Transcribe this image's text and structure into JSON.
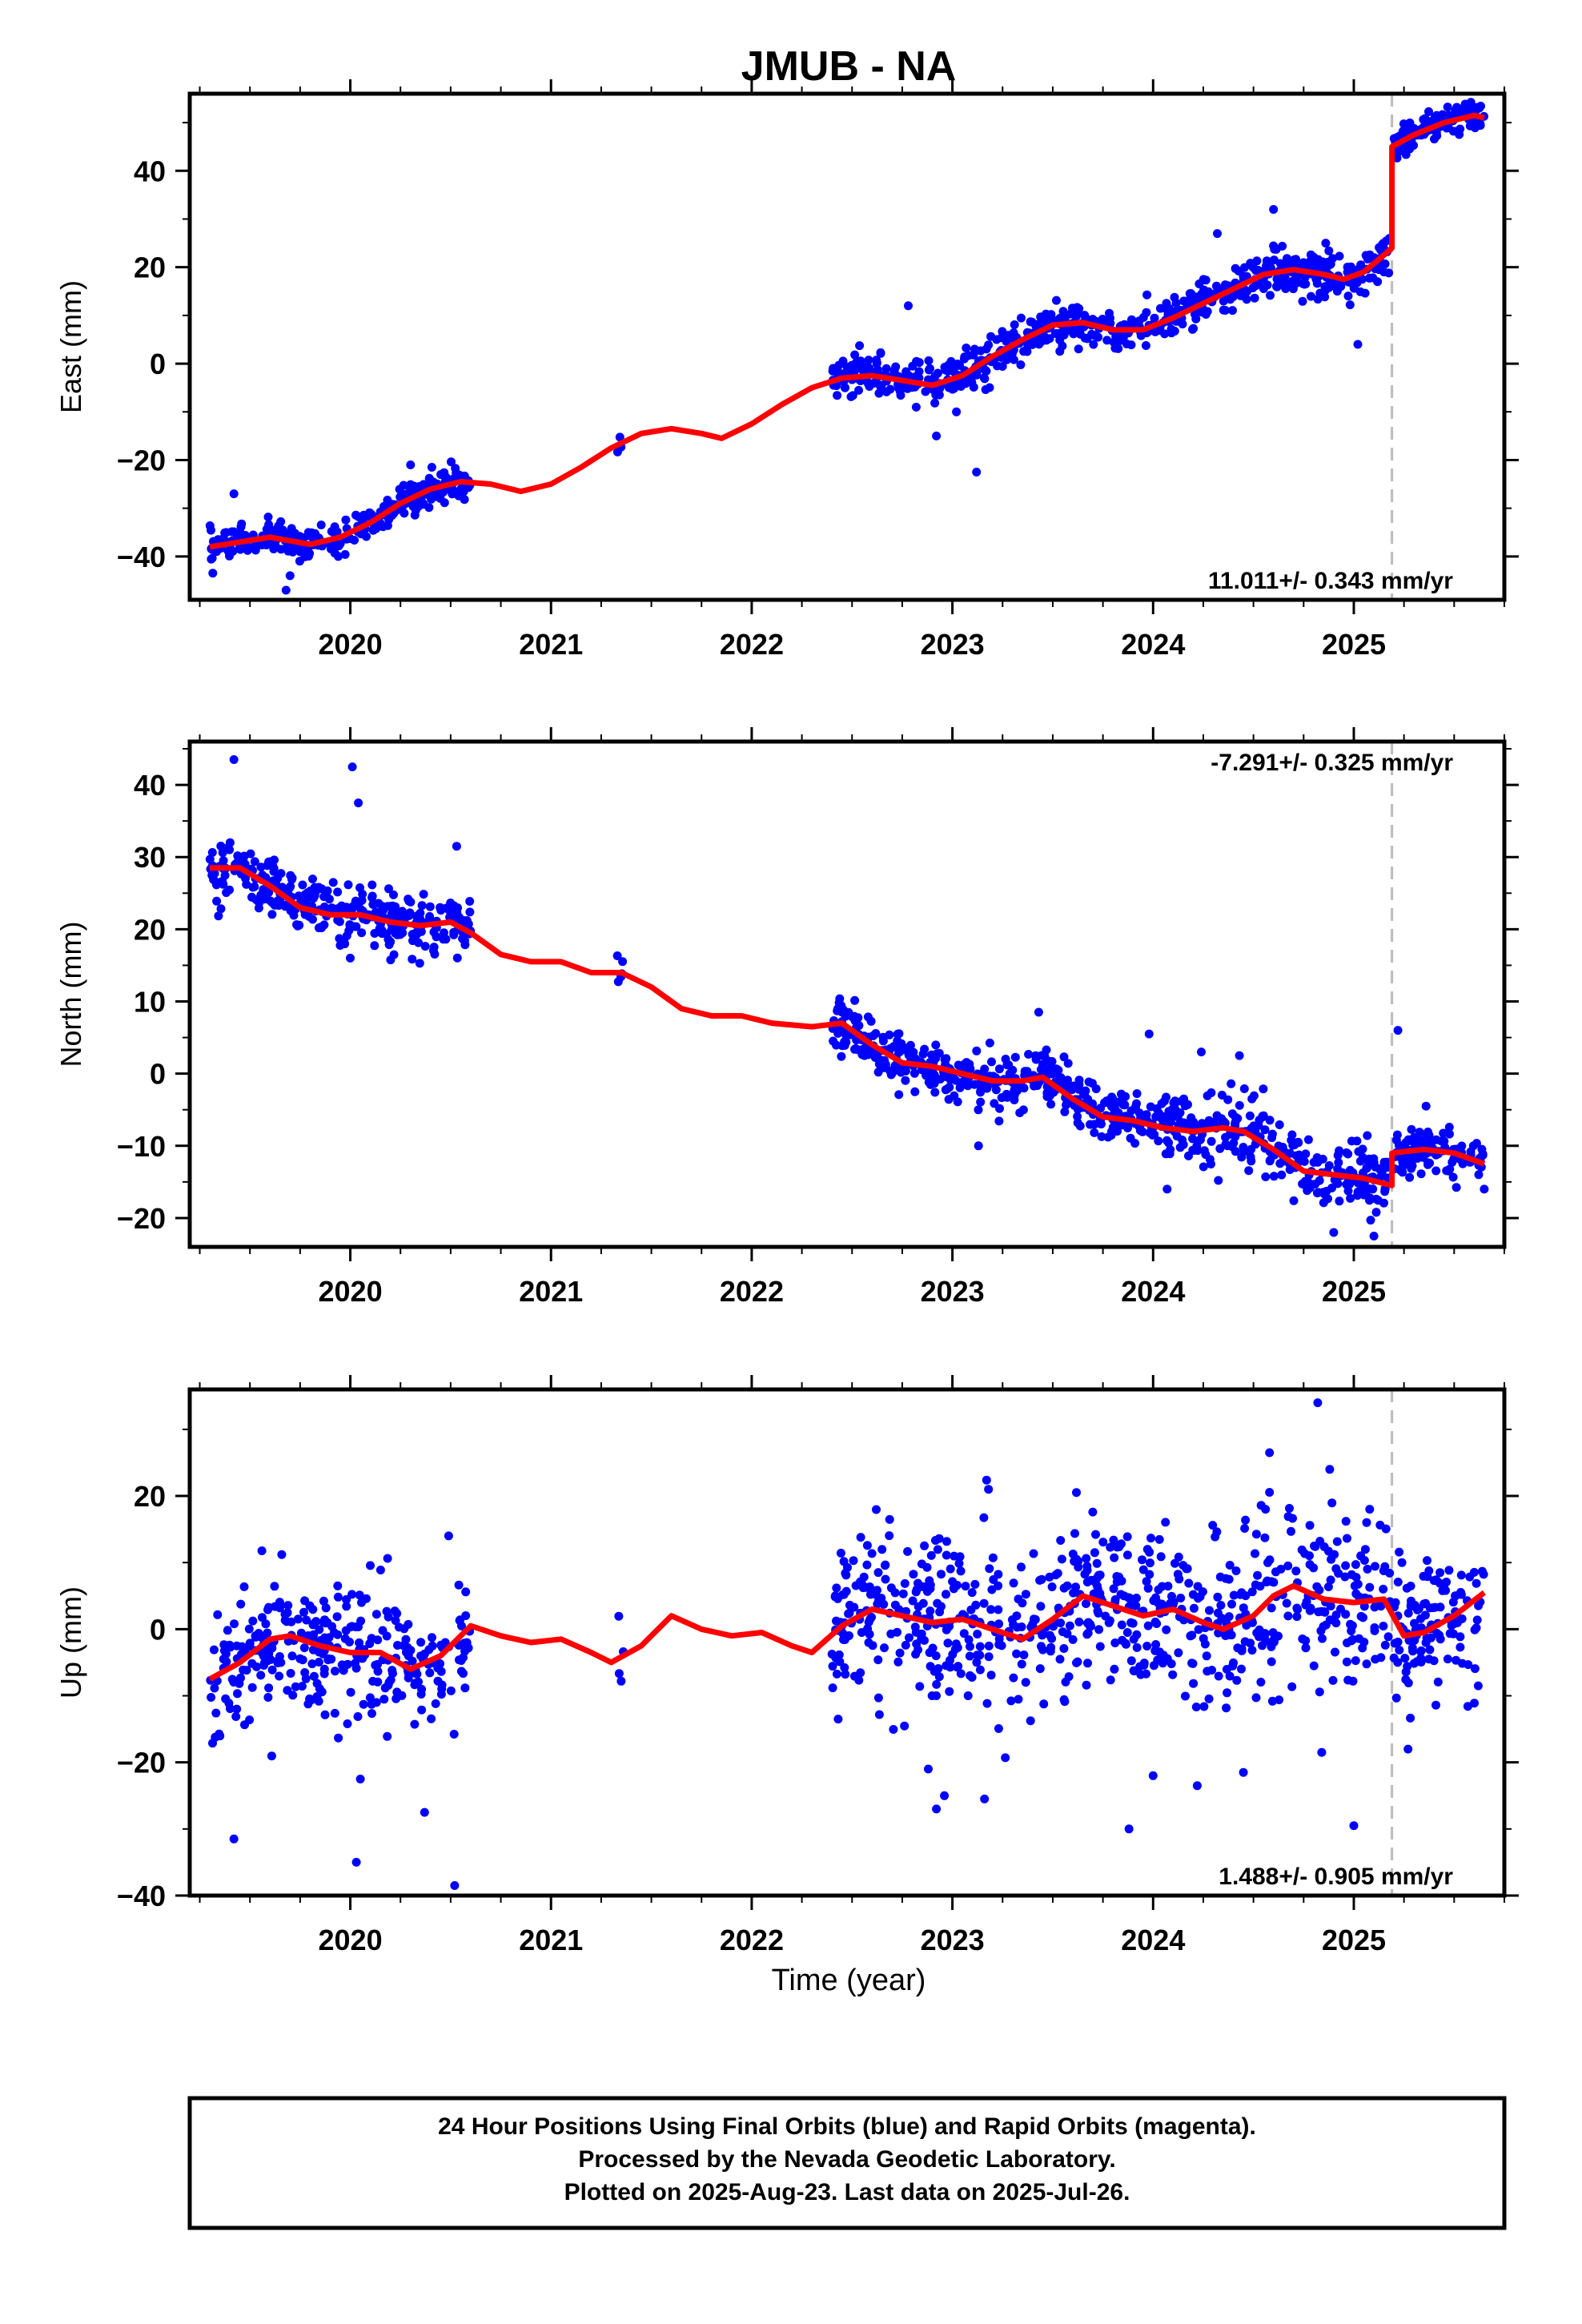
{
  "title": "JMUB - NA",
  "xlabel": "Time (year)",
  "footer": {
    "line1": "24 Hour Positions Using Final Orbits (blue) and Rapid Orbits (magenta).",
    "line2": "Processed by the Nevada Geodetic Laboratory.",
    "line3": "Plotted on 2025-Aug-23. Last data on 2025-Jul-26."
  },
  "colors": {
    "points": "#0000ff",
    "model": "#ff0000",
    "step_line": "#bbbbbb",
    "frame": "#000000"
  },
  "chart_data": [
    {
      "type": "scatter",
      "name": "east",
      "ylabel": "East (mm)",
      "rate_label": "11.011+/- 0.343 mm/yr",
      "xlim": [
        2019.2,
        2025.75
      ],
      "ylim": [
        -49,
        56
      ],
      "xticks": [
        2020,
        2021,
        2022,
        2023,
        2024,
        2025
      ],
      "yticks": [
        -40,
        -20,
        0,
        20,
        40
      ],
      "step_epoch": 2025.19,
      "model": [
        [
          2019.3,
          -38
        ],
        [
          2019.45,
          -37
        ],
        [
          2019.6,
          -36
        ],
        [
          2019.8,
          -37.5
        ],
        [
          2019.95,
          -36
        ],
        [
          2020.1,
          -33
        ],
        [
          2020.25,
          -29
        ],
        [
          2020.4,
          -26
        ],
        [
          2020.55,
          -24.5
        ],
        [
          2020.7,
          -25
        ],
        [
          2020.85,
          -26.5
        ],
        [
          2021.0,
          -25
        ],
        [
          2021.15,
          -21.5
        ],
        [
          2021.3,
          -17.5
        ],
        [
          2021.45,
          -14.5
        ],
        [
          2021.6,
          -13.5
        ],
        [
          2021.75,
          -14.5
        ],
        [
          2021.85,
          -15.5
        ],
        [
          2022.0,
          -12.5
        ],
        [
          2022.15,
          -8.5
        ],
        [
          2022.3,
          -5
        ],
        [
          2022.45,
          -3
        ],
        [
          2022.6,
          -2.5
        ],
        [
          2022.75,
          -3.5
        ],
        [
          2022.9,
          -4.5
        ],
        [
          2023.05,
          -2.5
        ],
        [
          2023.2,
          1.5
        ],
        [
          2023.35,
          5
        ],
        [
          2023.5,
          8
        ],
        [
          2023.65,
          8.5
        ],
        [
          2023.8,
          7
        ],
        [
          2023.95,
          7
        ],
        [
          2024.1,
          9.5
        ],
        [
          2024.25,
          12.5
        ],
        [
          2024.4,
          15.5
        ],
        [
          2024.55,
          18.5
        ],
        [
          2024.7,
          19.5
        ],
        [
          2024.85,
          18.5
        ],
        [
          2024.95,
          17.5
        ],
        [
          2025.05,
          19
        ],
        [
          2025.15,
          22.5
        ],
        [
          2025.19,
          24
        ],
        [
          2025.19,
          45
        ],
        [
          2025.3,
          47.5
        ],
        [
          2025.45,
          50
        ],
        [
          2025.6,
          51.5
        ],
        [
          2025.65,
          51
        ]
      ],
      "segments": [
        {
          "x0": 2019.3,
          "x1": 2020.6,
          "n": 320,
          "sd": 1.6,
          "out": [
            [
              2019.42,
              -27
            ],
            [
              2019.68,
              -47
            ],
            [
              2019.7,
              -44
            ],
            [
              2020.3,
              -21
            ]
          ]
        },
        {
          "x0": 2021.33,
          "x1": 2021.36,
          "n": 4,
          "sd": 1.2,
          "out": []
        },
        {
          "x0": 2022.4,
          "x1": 2023.7,
          "n": 330,
          "sd": 2.1,
          "out": [
            [
              2022.78,
              12
            ],
            [
              2022.92,
              -15
            ],
            [
              2023.12,
              -22.5
            ],
            [
              2023.02,
              -10
            ]
          ]
        },
        {
          "x0": 2023.7,
          "x1": 2025.18,
          "n": 360,
          "sd": 2.2,
          "out": [
            [
              2024.6,
              32
            ],
            [
              2024.32,
              27
            ],
            [
              2025.02,
              4
            ],
            [
              2024.86,
              25
            ]
          ]
        },
        {
          "x0": 2025.2,
          "x1": 2025.65,
          "n": 120,
          "sd": 1.6,
          "out": []
        }
      ]
    },
    {
      "type": "scatter",
      "name": "north",
      "ylabel": "North (mm)",
      "rate_label": "-7.291+/- 0.325 mm/yr",
      "xlim": [
        2019.2,
        2025.75
      ],
      "ylim": [
        -24,
        46
      ],
      "xticks": [
        2020,
        2021,
        2022,
        2023,
        2024,
        2025
      ],
      "yticks": [
        -20,
        -10,
        0,
        10,
        20,
        30,
        40
      ],
      "step_epoch": 2025.19,
      "model": [
        [
          2019.3,
          28.5
        ],
        [
          2019.45,
          28.5
        ],
        [
          2019.6,
          26
        ],
        [
          2019.75,
          23
        ],
        [
          2019.9,
          22
        ],
        [
          2020.05,
          22
        ],
        [
          2020.2,
          21
        ],
        [
          2020.35,
          20.5
        ],
        [
          2020.5,
          21
        ],
        [
          2020.6,
          19.5
        ],
        [
          2020.75,
          16.5
        ],
        [
          2020.9,
          15.5
        ],
        [
          2021.05,
          15.5
        ],
        [
          2021.2,
          14
        ],
        [
          2021.35,
          14
        ],
        [
          2021.5,
          12
        ],
        [
          2021.65,
          9
        ],
        [
          2021.8,
          8
        ],
        [
          2021.95,
          8
        ],
        [
          2022.1,
          7
        ],
        [
          2022.3,
          6.5
        ],
        [
          2022.45,
          7
        ],
        [
          2022.6,
          4
        ],
        [
          2022.75,
          1.5
        ],
        [
          2022.9,
          1
        ],
        [
          2023.05,
          0
        ],
        [
          2023.2,
          -1
        ],
        [
          2023.35,
          -1
        ],
        [
          2023.45,
          -0.5
        ],
        [
          2023.6,
          -3.5
        ],
        [
          2023.75,
          -6
        ],
        [
          2023.9,
          -6.5
        ],
        [
          2024.05,
          -7.5
        ],
        [
          2024.2,
          -8
        ],
        [
          2024.35,
          -7.5
        ],
        [
          2024.45,
          -8
        ],
        [
          2024.6,
          -10.5
        ],
        [
          2024.75,
          -13.5
        ],
        [
          2024.9,
          -14
        ],
        [
          2025.05,
          -14.5
        ],
        [
          2025.19,
          -15.5
        ],
        [
          2025.19,
          -11
        ],
        [
          2025.35,
          -10.5
        ],
        [
          2025.5,
          -11
        ],
        [
          2025.65,
          -12.5
        ]
      ],
      "segments": [
        {
          "x0": 2019.3,
          "x1": 2020.6,
          "n": 320,
          "sd": 2.0,
          "out": [
            [
              2019.42,
              43.5
            ],
            [
              2020.01,
              42.5
            ],
            [
              2020.04,
              37.5
            ],
            [
              2020.53,
              31.5
            ],
            [
              2020.0,
              16
            ]
          ]
        },
        {
          "x0": 2021.33,
          "x1": 2021.36,
          "n": 5,
          "sd": 1.3,
          "out": []
        },
        {
          "x0": 2022.4,
          "x1": 2023.7,
          "n": 330,
          "sd": 1.9,
          "out": [
            [
              2023.43,
              8.5
            ],
            [
              2023.13,
              -10
            ]
          ]
        },
        {
          "x0": 2023.7,
          "x1": 2025.18,
          "n": 360,
          "sd": 2.4,
          "out": [
            [
              2023.98,
              5.5
            ],
            [
              2024.24,
              3
            ],
            [
              2024.43,
              2.5
            ],
            [
              2024.9,
              -22
            ],
            [
              2025.1,
              -22.5
            ],
            [
              2024.07,
              -16
            ]
          ]
        },
        {
          "x0": 2025.2,
          "x1": 2025.65,
          "n": 120,
          "sd": 1.4,
          "out": [
            [
              2025.22,
              6
            ],
            [
              2025.36,
              -4.5
            ],
            [
              2025.65,
              -16
            ]
          ]
        }
      ]
    },
    {
      "type": "scatter",
      "name": "up",
      "ylabel": "Up (mm)",
      "rate_label": "1.488+/- 0.905 mm/yr",
      "xlim": [
        2019.2,
        2025.75
      ],
      "ylim": [
        -40,
        36
      ],
      "xticks": [
        2020,
        2021,
        2022,
        2023,
        2024,
        2025
      ],
      "yticks": [
        -40,
        -20,
        0,
        20
      ],
      "step_epoch": 2025.19,
      "model": [
        [
          2019.3,
          -7.5
        ],
        [
          2019.45,
          -5
        ],
        [
          2019.6,
          -1.5
        ],
        [
          2019.7,
          -1
        ],
        [
          2019.85,
          -2.5
        ],
        [
          2020.0,
          -3.5
        ],
        [
          2020.15,
          -3.5
        ],
        [
          2020.3,
          -6
        ],
        [
          2020.45,
          -4
        ],
        [
          2020.6,
          0.5
        ],
        [
          2020.75,
          -1
        ],
        [
          2020.9,
          -2
        ],
        [
          2021.05,
          -1.5
        ],
        [
          2021.2,
          -3.5
        ],
        [
          2021.3,
          -5
        ],
        [
          2021.45,
          -2.5
        ],
        [
          2021.6,
          2
        ],
        [
          2021.75,
          0
        ],
        [
          2021.9,
          -1
        ],
        [
          2022.05,
          -0.5
        ],
        [
          2022.2,
          -2.5
        ],
        [
          2022.3,
          -3.5
        ],
        [
          2022.45,
          0.5
        ],
        [
          2022.6,
          3
        ],
        [
          2022.75,
          2
        ],
        [
          2022.9,
          1
        ],
        [
          2023.05,
          1.5
        ],
        [
          2023.2,
          0
        ],
        [
          2023.35,
          -1.5
        ],
        [
          2023.5,
          1.5
        ],
        [
          2023.65,
          5
        ],
        [
          2023.8,
          3.5
        ],
        [
          2023.95,
          2
        ],
        [
          2024.1,
          3
        ],
        [
          2024.25,
          1
        ],
        [
          2024.35,
          0
        ],
        [
          2024.5,
          2
        ],
        [
          2024.6,
          5
        ],
        [
          2024.7,
          6.5
        ],
        [
          2024.85,
          4.5
        ],
        [
          2025.0,
          4
        ],
        [
          2025.15,
          4.5
        ],
        [
          2025.25,
          -1
        ],
        [
          2025.35,
          -0.5
        ],
        [
          2025.5,
          2
        ],
        [
          2025.65,
          5.5
        ]
      ],
      "segments": [
        {
          "x0": 2019.3,
          "x1": 2020.6,
          "n": 320,
          "sd": 5.2,
          "out": [
            [
              2019.42,
              -31.5
            ],
            [
              2020.03,
              -35
            ],
            [
              2020.37,
              -27.5
            ],
            [
              2020.52,
              -38.5
            ],
            [
              2020.05,
              -22.5
            ],
            [
              2020.49,
              14
            ]
          ]
        },
        {
          "x0": 2021.33,
          "x1": 2021.36,
          "n": 4,
          "sd": 3.0,
          "out": []
        },
        {
          "x0": 2022.4,
          "x1": 2023.7,
          "n": 330,
          "sd": 6.2,
          "out": [
            [
              2022.92,
              -27
            ],
            [
              2023.16,
              -25.5
            ],
            [
              2022.96,
              -25
            ],
            [
              2023.18,
              21
            ],
            [
              2022.88,
              -21
            ]
          ]
        },
        {
          "x0": 2023.7,
          "x1": 2025.18,
          "n": 360,
          "sd": 6.5,
          "out": [
            [
              2024.82,
              34
            ],
            [
              2024.58,
              26.5
            ],
            [
              2025.0,
              -29.5
            ],
            [
              2023.88,
              -30
            ],
            [
              2024.22,
              -23.5
            ],
            [
              2024.45,
              -21.5
            ],
            [
              2024.88,
              24
            ],
            [
              2024.84,
              -18.5
            ],
            [
              2024.0,
              -22
            ]
          ]
        },
        {
          "x0": 2025.2,
          "x1": 2025.65,
          "n": 120,
          "sd": 5.0,
          "out": [
            [
              2025.27,
              -18
            ],
            [
              2025.62,
              -8.5
            ],
            [
              2025.24,
              10
            ]
          ]
        }
      ]
    }
  ]
}
